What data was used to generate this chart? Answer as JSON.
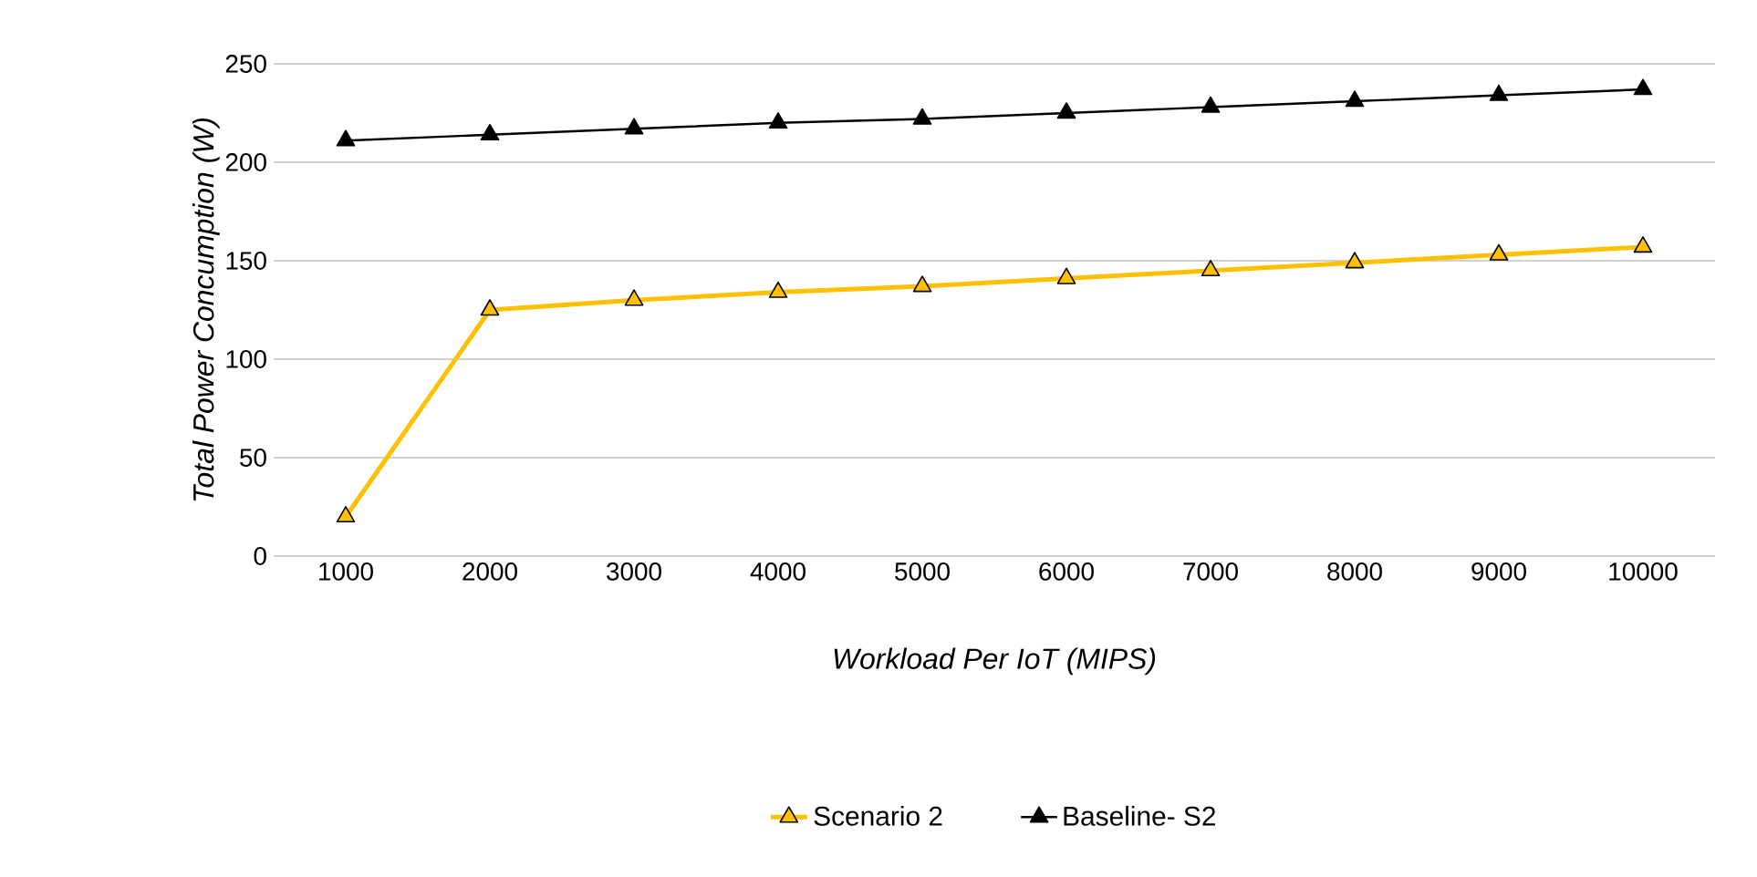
{
  "chart_data": {
    "type": "line",
    "xlabel": "Workload Per IoT  (MIPS)",
    "ylabel": "Total Power Concumption (W)",
    "categories": [
      "1000",
      "2000",
      "3000",
      "4000",
      "5000",
      "6000",
      "7000",
      "8000",
      "9000",
      "10000"
    ],
    "series": [
      {
        "name": "Scenario 2",
        "color": "#ffc000",
        "values": [
          20,
          125,
          130,
          134,
          137,
          141,
          145,
          149,
          153,
          157
        ]
      },
      {
        "name": "Baseline- S2",
        "color": "#000000",
        "values": [
          211,
          214,
          217,
          220,
          222,
          225,
          228,
          231,
          234,
          237
        ]
      }
    ],
    "ylim": [
      0,
      250
    ],
    "yticks": [
      0,
      50,
      100,
      150,
      200,
      250
    ],
    "grid": "y",
    "legend": "bottom",
    "marker": "triangle",
    "line_style": "solid"
  }
}
